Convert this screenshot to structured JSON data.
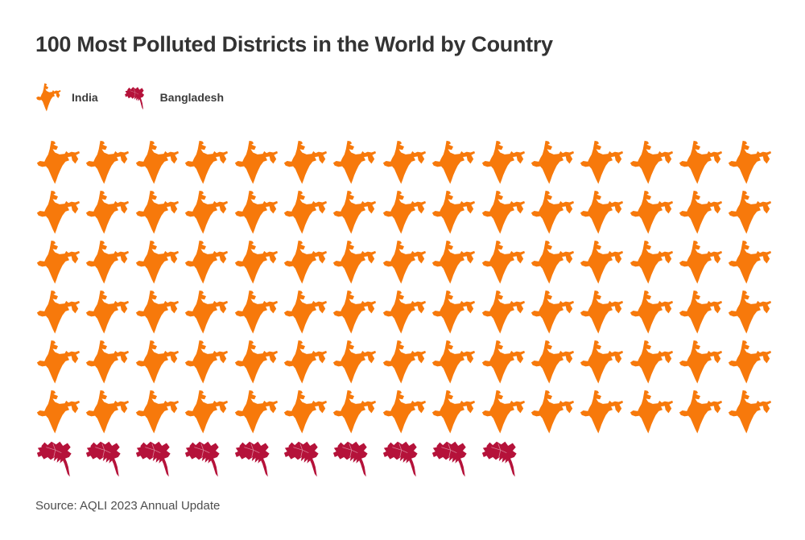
{
  "header": {
    "title": "100 Most Polluted Districts in the World by Country"
  },
  "legend": [
    {
      "id": "india",
      "label": "India",
      "icon": "india-map",
      "color": "#F7790B"
    },
    {
      "id": "bangladesh",
      "label": "Bangladesh",
      "icon": "bangladesh-map",
      "color": "#B5123A"
    }
  ],
  "chart_data": {
    "type": "pictogram",
    "title": "100 Most Polluted Districts in the World by Country",
    "categories": [
      "India",
      "Bangladesh"
    ],
    "values": [
      90,
      10
    ],
    "total_icons": 100,
    "icons_per_row": 15,
    "legend_position": "top-left",
    "series": [
      {
        "id": "india",
        "name": "India",
        "count": 90,
        "color": "#F7790B",
        "icon": "india-map"
      },
      {
        "id": "bangladesh",
        "name": "Bangladesh",
        "count": 10,
        "color": "#B5123A",
        "icon": "bangladesh-map"
      }
    ],
    "source": "Source: AQLI 2023 Annual Update"
  },
  "footer": {
    "source": "Source: AQLI 2023 Annual Update"
  },
  "colors": {
    "background": "#ffffff",
    "title_text": "#333333",
    "legend_text": "#3c3c3c",
    "source_text": "#4d4d4d"
  }
}
